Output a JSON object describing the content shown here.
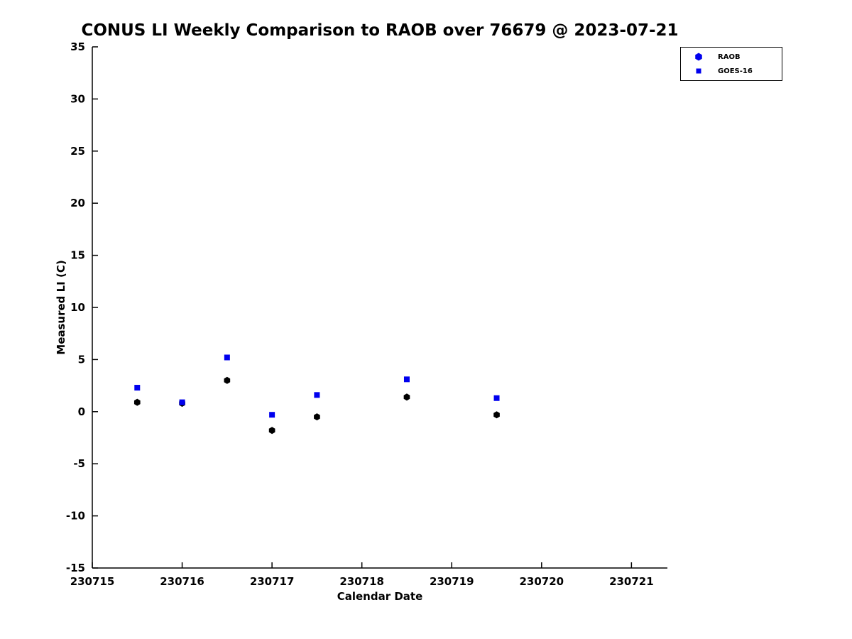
{
  "title": "CONUS LI Weekly Comparison to RAOB over 76679 @ 2023-07-21",
  "axes": {
    "xlabel": "Calendar Date",
    "ylabel": "Measured LI (C)"
  },
  "chart_data": {
    "type": "scatter",
    "title": "CONUS LI Weekly Comparison to RAOB over 76679 @ 2023-07-21",
    "xlabel": "Calendar Date",
    "ylabel": "Measured LI (C)",
    "xlim": [
      230715,
      230721.4
    ],
    "ylim": [
      -15,
      35
    ],
    "xticks": [
      230715,
      230716,
      230717,
      230718,
      230719,
      230720,
      230721
    ],
    "yticks": [
      -15,
      -10,
      -5,
      0,
      5,
      10,
      15,
      20,
      25,
      30,
      35
    ],
    "grid": false,
    "legend_position": "upper right",
    "series": [
      {
        "name": "RAOB",
        "marker": "hexagon",
        "plot_color": "#000000",
        "legend_color": "#0000ee",
        "x": [
          230715.5,
          230716.0,
          230716.5,
          230717.0,
          230717.5,
          230718.5,
          230719.5
        ],
        "y": [
          0.9,
          0.8,
          3.0,
          -1.8,
          -0.5,
          1.4,
          -0.3
        ]
      },
      {
        "name": "GOES-16",
        "marker": "square",
        "plot_color": "#0000ee",
        "legend_color": "#0000ee",
        "x": [
          230715.5,
          230716.0,
          230716.5,
          230717.0,
          230717.5,
          230718.5,
          230719.5
        ],
        "y": [
          2.3,
          0.9,
          5.2,
          -0.3,
          1.6,
          3.1,
          1.3
        ]
      }
    ]
  }
}
